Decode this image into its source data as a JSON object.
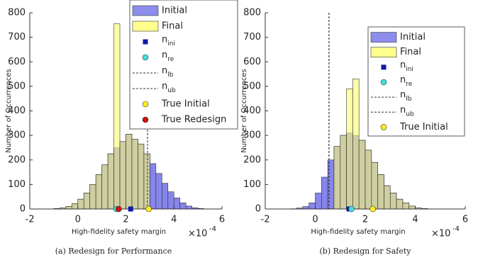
{
  "chart_data": [
    {
      "type": "histogram",
      "caption": "(a) Redesign for Performance",
      "xlabel": "High-fidelity safety margin",
      "ylabel": "Number of Occurrences",
      "x_multiplier": "×10",
      "x_exponent": "-4",
      "xlim": [
        -2,
        6
      ],
      "ylim": [
        0,
        800
      ],
      "xticks": [
        -2,
        0,
        2,
        4,
        6
      ],
      "yticks": [
        0,
        100,
        200,
        300,
        400,
        500,
        600,
        700,
        800
      ],
      "bins": [
        -1.0,
        -0.75,
        -0.5,
        -0.25,
        0,
        0.25,
        0.5,
        0.75,
        1.0,
        1.25,
        1.5,
        1.75,
        2.0,
        2.25,
        2.5,
        2.75,
        3.0,
        3.25,
        3.5,
        3.75,
        4.0,
        4.25,
        4.5,
        4.75,
        5.0,
        5.25
      ],
      "series": [
        {
          "name": "Initial",
          "color": "#7070e8",
          "values": [
            2,
            5,
            10,
            22,
            40,
            65,
            100,
            140,
            180,
            225,
            250,
            275,
            305,
            285,
            265,
            225,
            185,
            145,
            105,
            70,
            45,
            25,
            12,
            5,
            2
          ]
        },
        {
          "name": "Final",
          "color": "#ffff70",
          "values": [
            2,
            5,
            10,
            22,
            40,
            65,
            100,
            140,
            180,
            225,
            755,
            275,
            305,
            285,
            265,
            225,
            0,
            0,
            0,
            0,
            0,
            0,
            0,
            0,
            0
          ]
        }
      ],
      "markers": [
        {
          "name": "n_ini",
          "shape": "square",
          "color": "#0a1aa8",
          "x": 2.2,
          "y": 0
        },
        {
          "name": "n_re",
          "shape": "circle",
          "color": "#40e0d8",
          "x": 1.6,
          "y": 0
        },
        {
          "name": "n_lb",
          "shape": "vline",
          "color": "#333333",
          "x": 2.9
        },
        {
          "name": "n_ub",
          "shape": "vline",
          "color": "#333333",
          "x": 2.9
        },
        {
          "name": "True Initial",
          "shape": "circle",
          "color": "#ffee22",
          "x": 2.95,
          "y": 0
        },
        {
          "name": "True Redesign",
          "shape": "circle",
          "color": "#d01010",
          "x": 1.7,
          "y": 0
        }
      ]
    },
    {
      "type": "histogram",
      "caption": "(b) Redesign for Safety",
      "xlabel": "High-fidelity safety margin",
      "ylabel": "Number of Occurrences",
      "x_multiplier": "×10",
      "x_exponent": "-4",
      "xlim": [
        -2,
        6
      ],
      "ylim": [
        0,
        800
      ],
      "xticks": [
        -2,
        0,
        2,
        4,
        6
      ],
      "yticks": [
        0,
        100,
        200,
        300,
        400,
        500,
        600,
        700,
        800
      ],
      "bins": [
        -1.0,
        -0.75,
        -0.5,
        -0.25,
        0,
        0.25,
        0.5,
        0.75,
        1.0,
        1.25,
        1.5,
        1.75,
        2.0,
        2.25,
        2.5,
        2.75,
        3.0,
        3.25,
        3.5,
        3.75,
        4.0,
        4.25,
        4.5,
        4.75,
        5.0,
        5.25
      ],
      "series": [
        {
          "name": "Initial",
          "color": "#7070e8",
          "values": [
            1,
            4,
            10,
            25,
            65,
            130,
            200,
            255,
            300,
            310,
            300,
            280,
            240,
            190,
            140,
            95,
            65,
            40,
            25,
            12,
            5,
            2,
            0,
            0,
            0
          ]
        },
        {
          "name": "Final",
          "color": "#ffff70",
          "values": [
            0,
            0,
            0,
            0,
            0,
            0,
            0,
            255,
            300,
            490,
            530,
            280,
            240,
            190,
            140,
            95,
            65,
            40,
            25,
            12,
            5,
            2,
            0,
            0,
            0
          ]
        }
      ],
      "markers": [
        {
          "name": "n_ini",
          "shape": "square",
          "color": "#0a1aa8",
          "x": 1.35,
          "y": 0
        },
        {
          "name": "n_re",
          "shape": "circle",
          "color": "#40e0d8",
          "x": 1.45,
          "y": 0
        },
        {
          "name": "n_lb",
          "shape": "vline",
          "color": "#333333",
          "x": 0.55
        },
        {
          "name": "n_ub",
          "shape": "vline",
          "color": "#333333",
          "x": 0.55
        },
        {
          "name": "True Initial",
          "shape": "circle",
          "color": "#ffee22",
          "x": 2.3,
          "y": 0
        }
      ]
    }
  ]
}
